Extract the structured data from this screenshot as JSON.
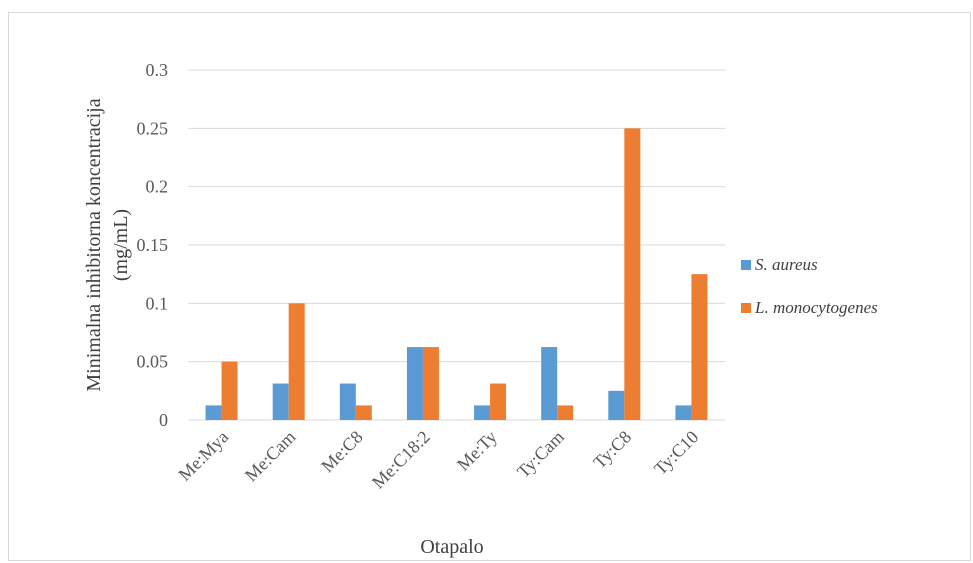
{
  "chart_data": {
    "type": "bar",
    "categories": [
      "Me:Mya",
      "Me:Cam",
      "Me:C8",
      "Me:C18:2",
      "Me:Ty",
      "Ty:Cam",
      "Ty:C8",
      "Ty:C10"
    ],
    "series": [
      {
        "name": "S. aureus",
        "color": "#5b9bd5",
        "values": [
          0.0125,
          0.03125,
          0.03125,
          0.0625,
          0.0125,
          0.0625,
          0.025,
          0.0125
        ]
      },
      {
        "name": "L. monocytogenes",
        "color": "#ed7d31",
        "values": [
          0.05,
          0.1,
          0.0125,
          0.0625,
          0.03125,
          0.0125,
          0.25,
          0.125
        ]
      }
    ],
    "xlabel": "Otapalo",
    "ylabel_line1": "Minimalna inhibitorna  koncentracija",
    "ylabel_line2": "(mg/mL)",
    "ylim": [
      0,
      0.3
    ],
    "yticks": [
      0,
      0.05,
      0.1,
      0.15,
      0.2,
      0.25,
      0.3
    ],
    "ytick_labels": [
      "0",
      "0.05",
      "0.1",
      "0.15",
      "0.2",
      "0.25",
      "0.3"
    ],
    "grid": true,
    "legend_position": "right"
  }
}
